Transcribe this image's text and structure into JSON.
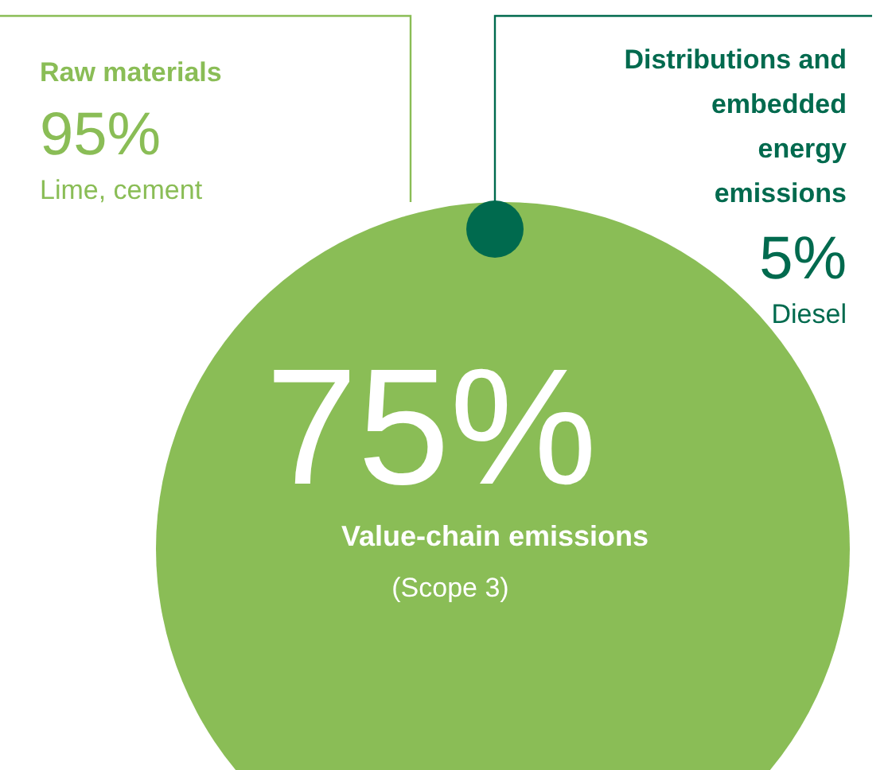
{
  "chart_data": {
    "type": "other",
    "title": "Value-chain emissions",
    "subtitle": "(Scope 3)",
    "categories": [
      "Raw materials",
      "Distributions and embedded energy emissions"
    ],
    "values": [
      95,
      5
    ],
    "value_labels": [
      "95%",
      "5%"
    ],
    "colors": [
      "#8abd56",
      "#006a4e"
    ],
    "annotations": [
      "75%",
      "Lime, cement",
      "Diesel"
    ]
  }
}
